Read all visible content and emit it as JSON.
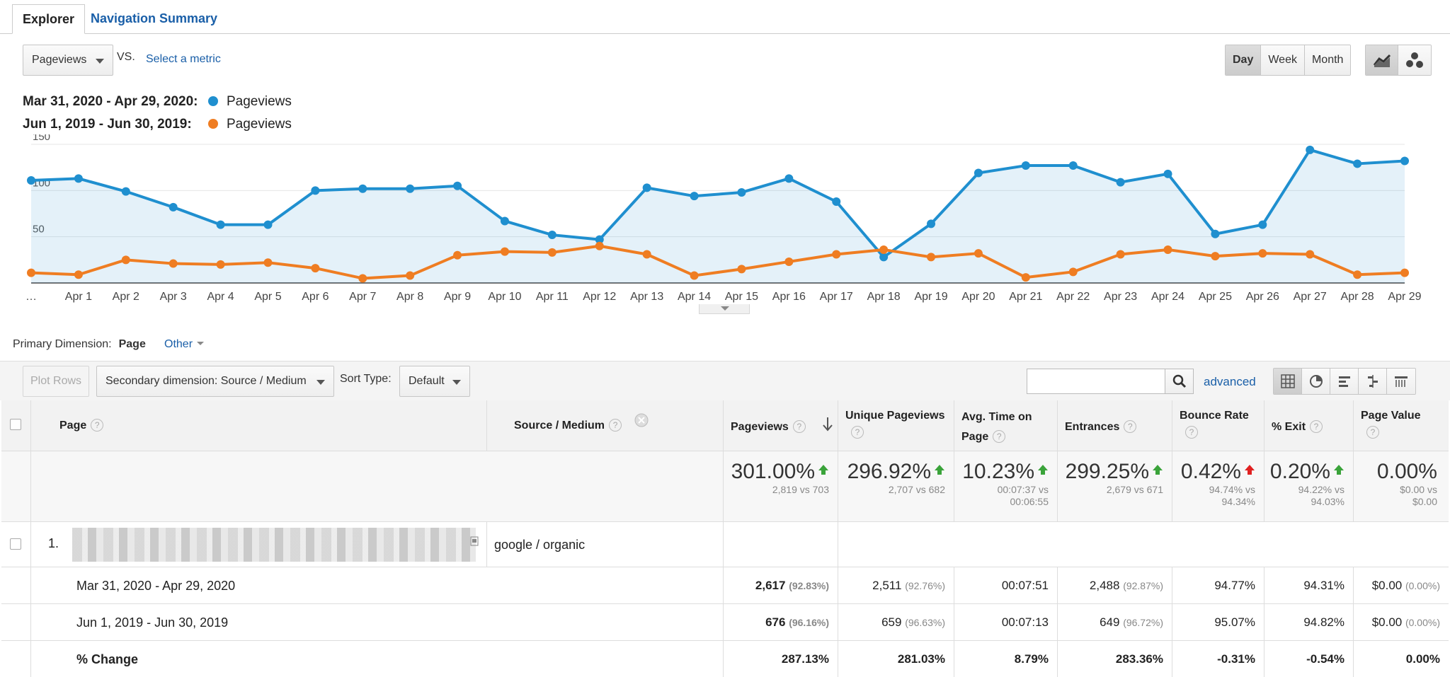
{
  "tabs": {
    "explorer": "Explorer",
    "nav_summary": "Navigation Summary"
  },
  "metric": {
    "selected": "Pageviews",
    "vs": "VS.",
    "select_metric": "Select a metric"
  },
  "period_buttons": [
    "Day",
    "Week",
    "Month"
  ],
  "period_selected": "Day",
  "legend": [
    {
      "range": "Mar 31, 2020 - Apr 29, 2020:",
      "metric": "Pageviews",
      "color": "#1f8fcf"
    },
    {
      "range": "Jun 1, 2019 - Jun 30, 2019:",
      "metric": "Pageviews",
      "color": "#ef7d22"
    }
  ],
  "chart_data": {
    "type": "line",
    "x": [
      "…",
      "Apr 1",
      "Apr 2",
      "Apr 3",
      "Apr 4",
      "Apr 5",
      "Apr 6",
      "Apr 7",
      "Apr 8",
      "Apr 9",
      "Apr 10",
      "Apr 11",
      "Apr 12",
      "Apr 13",
      "Apr 14",
      "Apr 15",
      "Apr 16",
      "Apr 17",
      "Apr 18",
      "Apr 19",
      "Apr 20",
      "Apr 21",
      "Apr 22",
      "Apr 23",
      "Apr 24",
      "Apr 25",
      "Apr 26",
      "Apr 27",
      "Apr 28",
      "Apr 29"
    ],
    "y_ticks": [
      50,
      100,
      150
    ],
    "ylim": [
      0,
      150
    ],
    "grid": true,
    "series": [
      {
        "name": "Pageviews",
        "color": "#1f8fcf",
        "filled": true,
        "values": [
          111,
          113,
          99,
          82,
          63,
          63,
          100,
          102,
          102,
          105,
          67,
          52,
          47,
          103,
          94,
          98,
          113,
          88,
          28,
          64,
          119,
          127,
          127,
          109,
          118,
          53,
          63,
          144,
          129,
          132
        ]
      },
      {
        "name": "Pageviews",
        "color": "#ef7d22",
        "filled": false,
        "values": [
          11,
          9,
          25,
          21,
          20,
          22,
          16,
          5,
          8,
          30,
          34,
          33,
          40,
          31,
          8,
          15,
          23,
          31,
          36,
          28,
          32,
          6,
          12,
          31,
          36,
          29,
          32,
          31,
          9,
          11
        ]
      }
    ]
  },
  "primary_dimension": {
    "label": "Primary Dimension:",
    "value": "Page",
    "other": "Other"
  },
  "table_toolbar": {
    "plot_rows": "Plot Rows",
    "secondary": "Secondary dimension: Source / Medium",
    "sort_type_label": "Sort Type:",
    "sort_type_value": "Default",
    "search_placeholder": "",
    "advanced": "advanced"
  },
  "table": {
    "headers": {
      "page": "Page",
      "source": "Source / Medium",
      "pageviews": "Pageviews",
      "unique": "Unique Pageviews",
      "avg_time": "Avg. Time on Page",
      "entrances": "Entrances",
      "bounce": "Bounce Rate",
      "exit": "% Exit",
      "value": "Page Value"
    },
    "totals": {
      "pageviews": {
        "big": "301.00%",
        "sub": "2,819 vs 703",
        "dir": "up"
      },
      "unique": {
        "big": "296.92%",
        "sub": "2,707 vs 682",
        "dir": "up"
      },
      "avg_time": {
        "big": "10.23%",
        "sub1": "00:07:37 vs",
        "sub2": "00:06:55",
        "dir": "up"
      },
      "entrances": {
        "big": "299.25%",
        "sub": "2,679 vs 671",
        "dir": "up"
      },
      "bounce": {
        "big": "0.42%",
        "sub1": "94.74% vs",
        "sub2": "94.34%",
        "dir": "up-red"
      },
      "exit": {
        "big": "0.20%",
        "sub1": "94.22% vs",
        "sub2": "94.03%",
        "dir": "up"
      },
      "value": {
        "big": "0.00%",
        "sub1": "$0.00 vs",
        "sub2": "$0.00"
      }
    },
    "row1": {
      "index": "1.",
      "source": "google / organic"
    },
    "rows": [
      {
        "label": "Mar 31, 2020 - Apr 29, 2020",
        "pv": "2,617",
        "pv_pct": "(92.83%)",
        "upv": "2,511",
        "upv_pct": "(92.76%)",
        "time": "00:07:51",
        "ent": "2,488",
        "ent_pct": "(92.87%)",
        "bounce": "94.77%",
        "exit": "94.31%",
        "val": "$0.00",
        "val_pct": "(0.00%)"
      },
      {
        "label": "Jun 1, 2019 - Jun 30, 2019",
        "pv": "676",
        "pv_pct": "(96.16%)",
        "upv": "659",
        "upv_pct": "(96.63%)",
        "time": "00:07:13",
        "ent": "649",
        "ent_pct": "(96.72%)",
        "bounce": "95.07%",
        "exit": "94.82%",
        "val": "$0.00",
        "val_pct": "(0.00%)"
      }
    ],
    "change": {
      "label": "% Change",
      "pv": "287.13%",
      "upv": "281.03%",
      "time": "8.79%",
      "ent": "283.36%",
      "bounce": "-0.31%",
      "exit": "-0.54%",
      "val": "0.00%"
    }
  }
}
